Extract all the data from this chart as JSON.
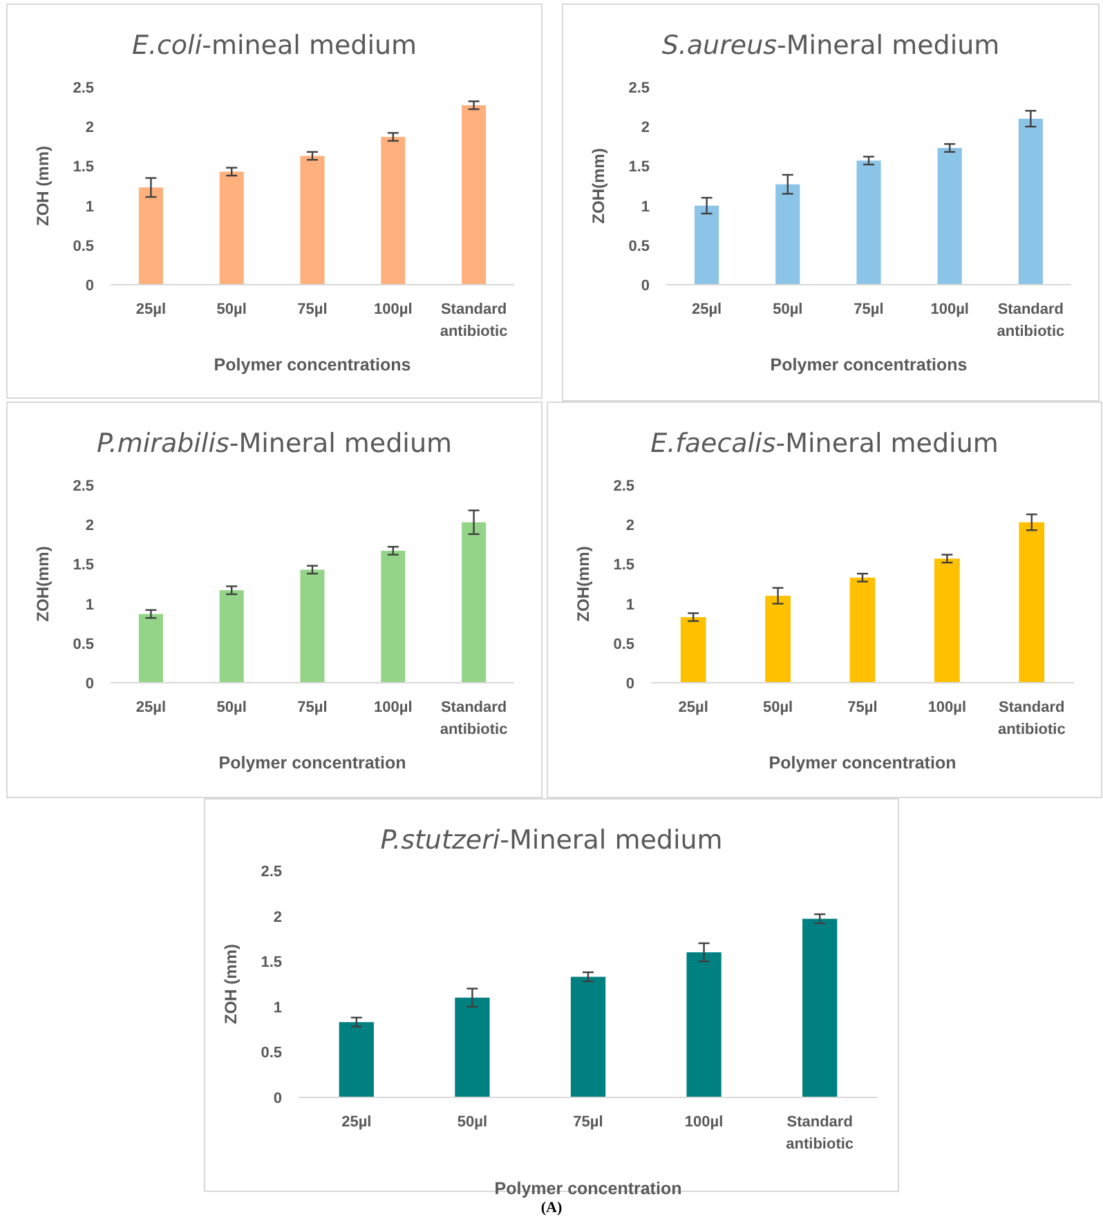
{
  "chart_data": [
    {
      "type": "bar",
      "title": "E.coli-mineal medium",
      "xlabel": "Polymer concentrations",
      "ylabel": "ZOH (mm)",
      "categories": [
        "25µl",
        "50µl",
        "75µl",
        "100µl",
        "Standard antibiotic"
      ],
      "values": [
        1.23,
        1.43,
        1.63,
        1.87,
        2.27
      ],
      "errors": [
        0.12,
        0.05,
        0.05,
        0.05,
        0.05
      ],
      "color": "#ffb07c",
      "ylim": [
        0,
        2.5
      ],
      "yticks": [
        0,
        0.5,
        1,
        1.5,
        2,
        2.5
      ],
      "grid": false
    },
    {
      "type": "bar",
      "title": "S.aureus-Mineral medium",
      "xlabel": "Polymer concentrations",
      "ylabel": "ZOH(mm)",
      "categories": [
        "25µl",
        "50µl",
        "75µl",
        "100µl",
        "Standard antibiotic"
      ],
      "values": [
        1.0,
        1.27,
        1.57,
        1.73,
        2.1
      ],
      "errors": [
        0.1,
        0.12,
        0.05,
        0.05,
        0.1
      ],
      "color": "#8cc4e8",
      "ylim": [
        0,
        2.5
      ],
      "yticks": [
        0,
        0.5,
        1,
        1.5,
        2,
        2.5
      ],
      "grid": false
    },
    {
      "type": "bar",
      "title": "P.mirabilis-Mineral medium",
      "xlabel": "Polymer concentration",
      "ylabel": "ZOH(mm)",
      "categories": [
        "25µl",
        "50µl",
        "75µl",
        "100µl",
        "Standard antibiotic"
      ],
      "values": [
        0.87,
        1.17,
        1.43,
        1.67,
        2.03
      ],
      "errors": [
        0.05,
        0.05,
        0.05,
        0.05,
        0.15
      ],
      "color": "#94d488",
      "ylim": [
        0,
        2.5
      ],
      "yticks": [
        0,
        0.5,
        1,
        1.5,
        2,
        2.5
      ],
      "grid": false
    },
    {
      "type": "bar",
      "title": "E.faecalis-Mineral medium",
      "xlabel": "Polymer concentration",
      "ylabel": "ZOH(mm)",
      "categories": [
        "25µl",
        "50µl",
        "75µl",
        "100µl",
        "Standard antibiotic"
      ],
      "values": [
        0.83,
        1.1,
        1.33,
        1.57,
        2.03
      ],
      "errors": [
        0.05,
        0.1,
        0.05,
        0.05,
        0.1
      ],
      "color": "#ffc000",
      "ylim": [
        0,
        2.5
      ],
      "yticks": [
        0,
        0.5,
        1,
        1.5,
        2,
        2.5
      ],
      "grid": false
    },
    {
      "type": "bar",
      "title": "P.stutzeri-Mineral medium",
      "xlabel": "Polymer concentration",
      "ylabel": "ZOH (mm)",
      "categories": [
        "25µl",
        "50µl",
        "75µl",
        "100µl",
        "Standard antibiotic"
      ],
      "values": [
        0.83,
        1.1,
        1.33,
        1.6,
        1.97
      ],
      "errors": [
        0.05,
        0.1,
        0.05,
        0.1,
        0.05
      ],
      "color": "#008080",
      "ylim": [
        0,
        2.5
      ],
      "yticks": [
        0,
        0.5,
        1,
        1.5,
        2,
        2.5
      ],
      "grid": false,
      "annotations": [
        "(A)"
      ]
    }
  ]
}
